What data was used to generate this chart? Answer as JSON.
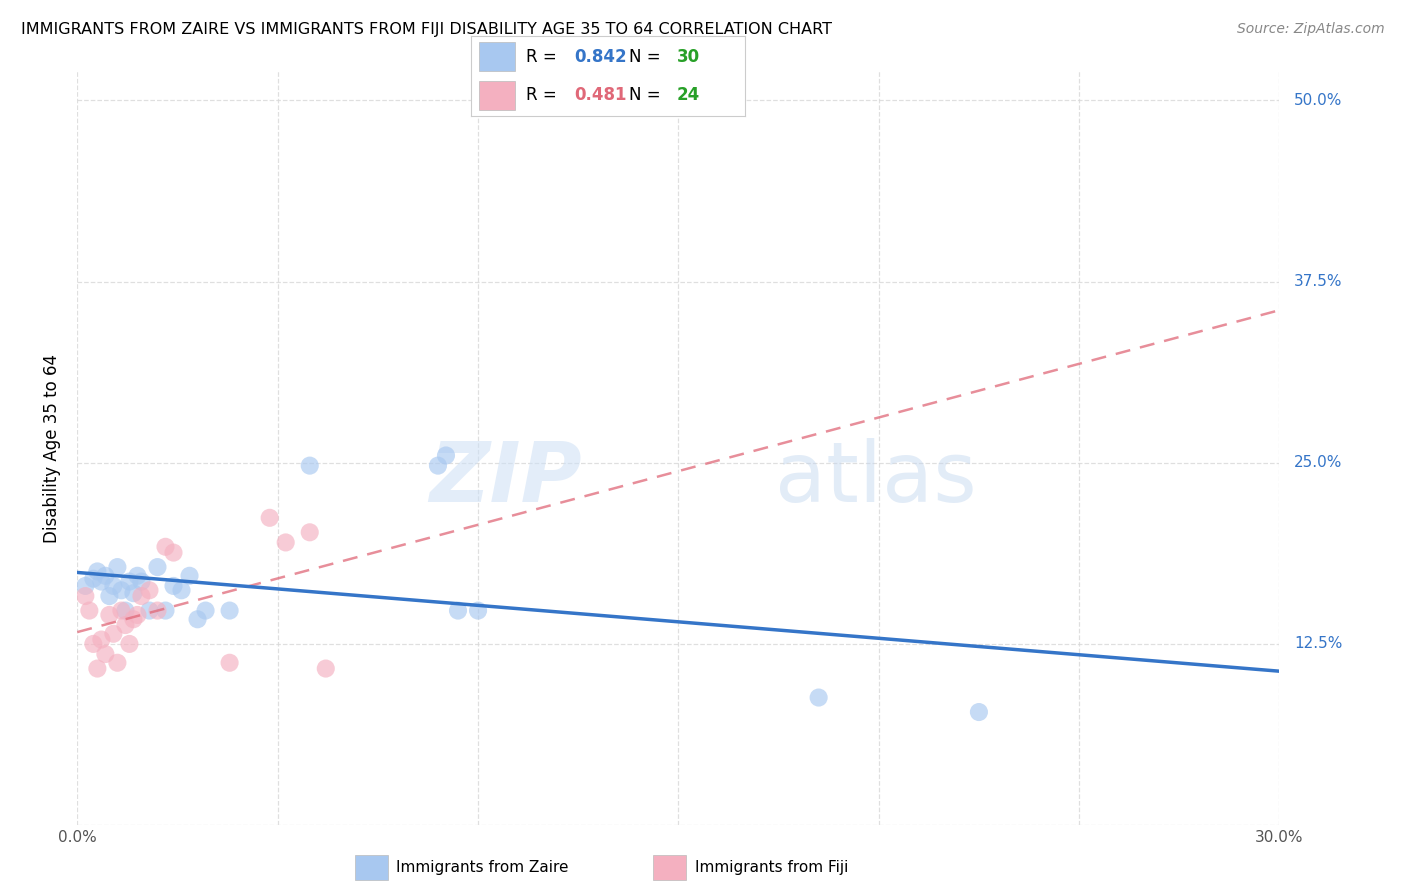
{
  "title": "IMMIGRANTS FROM ZAIRE VS IMMIGRANTS FROM FIJI DISABILITY AGE 35 TO 64 CORRELATION CHART",
  "source": "Source: ZipAtlas.com",
  "ylabel": "Disability Age 35 to 64",
  "xlim": [
    0.0,
    0.3
  ],
  "ylim": [
    0.0,
    0.52
  ],
  "xticks": [
    0.0,
    0.05,
    0.1,
    0.15,
    0.2,
    0.25,
    0.3
  ],
  "xticklabels": [
    "0.0%",
    "",
    "",
    "",
    "",
    "",
    "30.0%"
  ],
  "yticks": [
    0.0,
    0.125,
    0.25,
    0.375,
    0.5
  ],
  "yticklabels_right": [
    "",
    "12.5%",
    "25.0%",
    "37.5%",
    "50.0%"
  ],
  "background_color": "#ffffff",
  "grid_color": "#d8d8d8",
  "watermark_zip": "ZIP",
  "watermark_atlas": "atlas",
  "zaire_R": "0.842",
  "zaire_N": "30",
  "fiji_R": "0.481",
  "fiji_N": "24",
  "zaire_scatter_color": "#a8c8f0",
  "fiji_scatter_color": "#f4b0c0",
  "zaire_line_color": "#3575c8",
  "fiji_line_color": "#e06878",
  "green_color": "#28a028",
  "scatter_size": 170,
  "scatter_alpha": 0.65,
  "zaire_x": [
    0.002,
    0.004,
    0.005,
    0.006,
    0.007,
    0.008,
    0.009,
    0.01,
    0.011,
    0.012,
    0.013,
    0.014,
    0.015,
    0.016,
    0.018,
    0.02,
    0.022,
    0.024,
    0.026,
    0.028,
    0.03,
    0.032,
    0.038,
    0.058,
    0.09,
    0.092,
    0.095,
    0.1,
    0.185,
    0.225
  ],
  "zaire_y": [
    0.165,
    0.17,
    0.175,
    0.168,
    0.172,
    0.158,
    0.165,
    0.178,
    0.162,
    0.148,
    0.168,
    0.16,
    0.172,
    0.168,
    0.148,
    0.178,
    0.148,
    0.165,
    0.162,
    0.172,
    0.142,
    0.148,
    0.148,
    0.248,
    0.248,
    0.255,
    0.148,
    0.148,
    0.088,
    0.078
  ],
  "fiji_x": [
    0.002,
    0.003,
    0.004,
    0.005,
    0.006,
    0.007,
    0.008,
    0.009,
    0.01,
    0.011,
    0.012,
    0.013,
    0.014,
    0.015,
    0.016,
    0.018,
    0.02,
    0.022,
    0.024,
    0.038,
    0.048,
    0.052,
    0.058,
    0.062
  ],
  "fiji_y": [
    0.158,
    0.148,
    0.125,
    0.108,
    0.128,
    0.118,
    0.145,
    0.132,
    0.112,
    0.148,
    0.138,
    0.125,
    0.142,
    0.145,
    0.158,
    0.162,
    0.148,
    0.192,
    0.188,
    0.112,
    0.212,
    0.195,
    0.202,
    0.108
  ]
}
